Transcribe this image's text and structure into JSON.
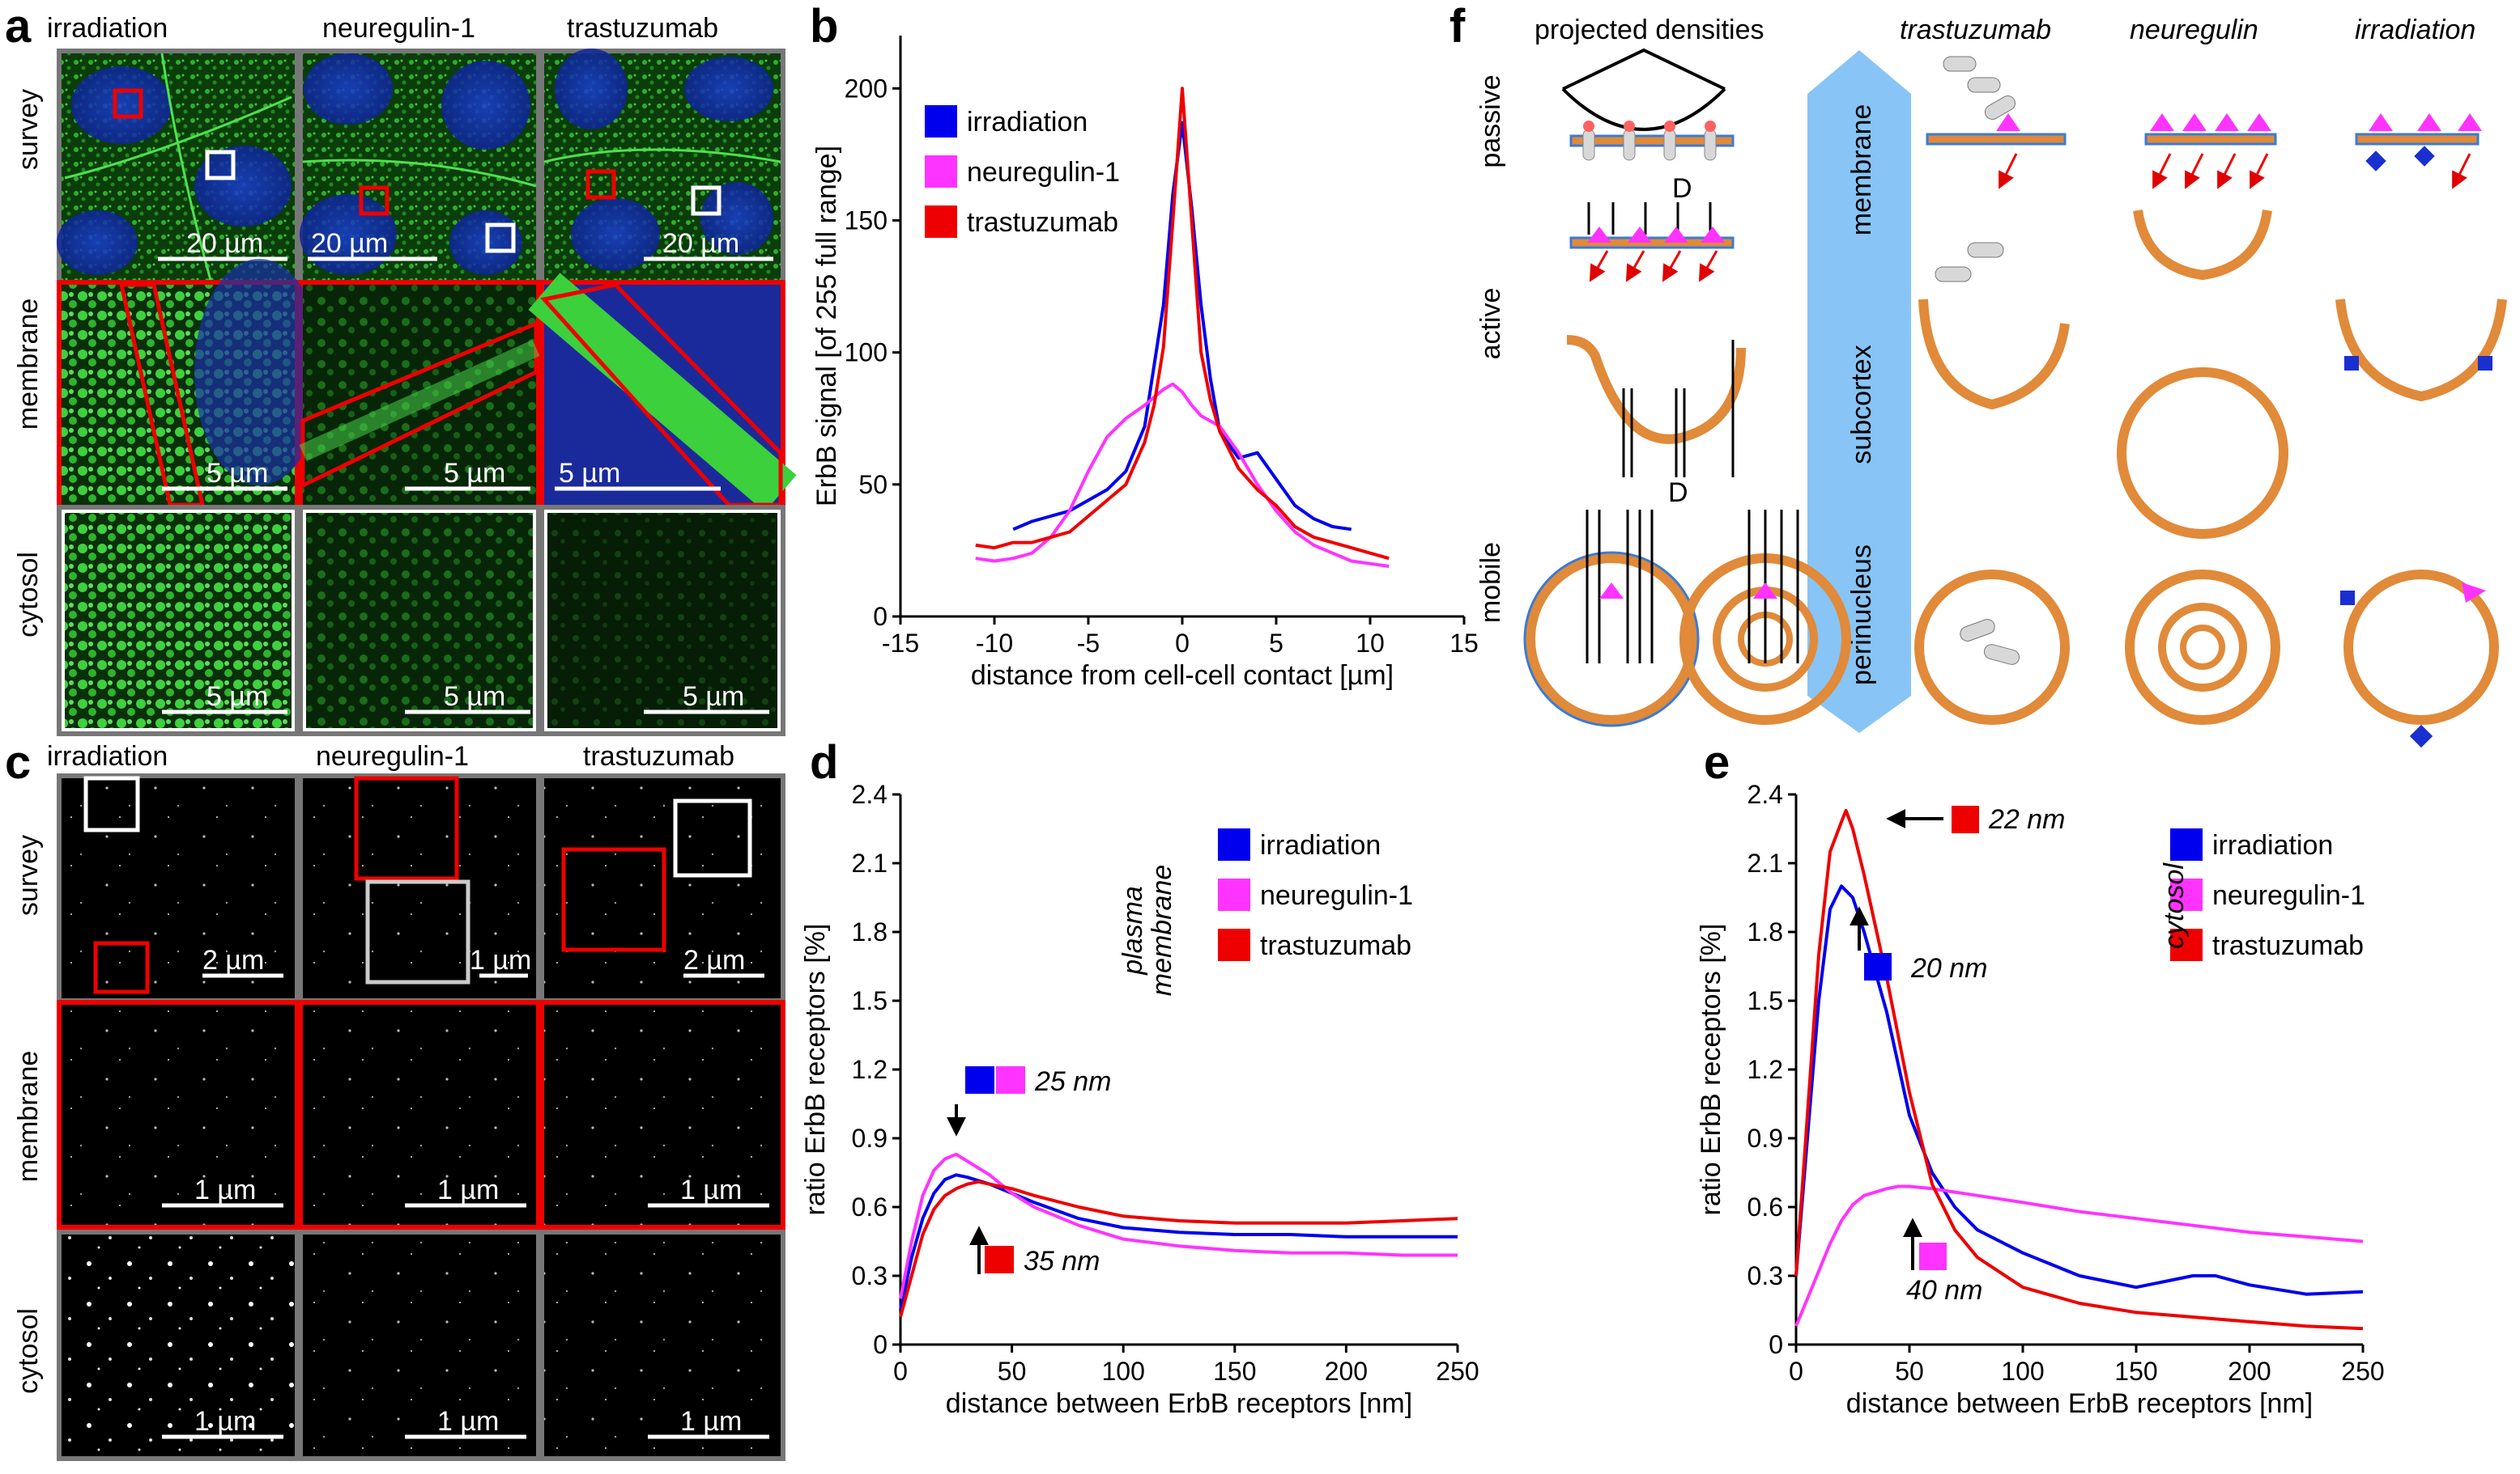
{
  "panels": {
    "a": "a",
    "b": "b",
    "c": "c",
    "d": "d",
    "e": "e",
    "f": "f"
  },
  "microscopy": {
    "columns": [
      "irradiation",
      "neuregulin-1",
      "trastuzumab"
    ],
    "rows": [
      "survey",
      "membrane",
      "cytosol"
    ],
    "scale_a": {
      "survey": [
        "20 µm",
        "20 µm",
        "20 µm"
      ],
      "membrane": [
        "5 µm",
        "5 µm",
        "5 µm"
      ],
      "cytosol": [
        "5 µm",
        "5 µm",
        "5 µm"
      ]
    },
    "scale_c": {
      "survey": [
        "2 µm",
        "1 µm",
        "2 µm"
      ],
      "membrane": [
        "1 µm",
        "1 µm",
        "1 µm"
      ],
      "cytosol": [
        "1 µm",
        "1 µm",
        "1 µm"
      ]
    }
  },
  "colors": {
    "irradiation": "#0000ee",
    "neuregulin": "#ff33ff",
    "trastuzumab": "#ee0000",
    "arrow": "#7fbfff",
    "membrane": "#e08a3a",
    "receptor": "#d8d8d8",
    "ligand": "#ff6060"
  },
  "chart_data": [
    {
      "panel": "b",
      "type": "line",
      "xlabel": "distance from cell-cell contact [µm]",
      "ylabel": "ErbB signal [of 255 full range]",
      "xlim": [
        -15,
        15
      ],
      "ylim": [
        0,
        220
      ],
      "xticks": [
        -15,
        -10,
        -5,
        0,
        5,
        10,
        15
      ],
      "yticks": [
        0,
        50,
        100,
        150,
        200
      ],
      "legend": [
        "irradiation",
        "neuregulin-1",
        "trastuzumab"
      ],
      "series": [
        {
          "name": "irradiation",
          "x": [
            -9,
            -8,
            -7,
            -6,
            -5,
            -4,
            -3,
            -2,
            -1.5,
            -1,
            -0.5,
            0,
            0.5,
            1,
            1.5,
            2,
            3,
            4,
            5,
            6,
            7,
            8,
            9
          ],
          "y": [
            33,
            36,
            38,
            40,
            44,
            48,
            55,
            72,
            95,
            118,
            160,
            187,
            155,
            118,
            90,
            70,
            60,
            62,
            52,
            42,
            37,
            34,
            33
          ]
        },
        {
          "name": "neuregulin-1",
          "x": [
            -11,
            -10,
            -9,
            -8,
            -7,
            -6,
            -5,
            -4,
            -3,
            -2,
            -1,
            -0.5,
            0,
            0.5,
            1,
            2,
            3,
            4,
            5,
            6,
            7,
            8,
            9,
            10,
            11
          ],
          "y": [
            22,
            21,
            22,
            24,
            30,
            40,
            55,
            68,
            75,
            80,
            86,
            88,
            85,
            80,
            76,
            72,
            62,
            50,
            40,
            32,
            27,
            24,
            21,
            20,
            19
          ]
        },
        {
          "name": "trastuzumab",
          "x": [
            -11,
            -10,
            -9,
            -8,
            -7,
            -6,
            -5,
            -4,
            -3,
            -2,
            -1.5,
            -1,
            -0.5,
            0,
            0.5,
            1,
            1.5,
            2,
            3,
            4,
            5,
            6,
            7,
            8,
            9,
            10,
            11
          ],
          "y": [
            27,
            26,
            28,
            28,
            30,
            32,
            38,
            44,
            50,
            66,
            80,
            102,
            150,
            200,
            150,
            100,
            82,
            70,
            56,
            48,
            42,
            34,
            30,
            28,
            26,
            24,
            22
          ]
        }
      ]
    },
    {
      "panel": "d",
      "type": "line",
      "xlabel": "distance between ErbB receptors [nm]",
      "ylabel": "ratio ErbB receptors [%]",
      "xlim": [
        0,
        250
      ],
      "ylim": [
        0,
        2.4
      ],
      "xticks": [
        0,
        50,
        100,
        150,
        200,
        250
      ],
      "yticks": [
        0,
        0.3,
        0.6,
        0.9,
        1.2,
        1.5,
        1.8,
        2.1,
        2.4
      ],
      "legend_title": "plasma membrane",
      "legend": [
        "irradiation",
        "neuregulin-1",
        "trastuzumab"
      ],
      "annotations": [
        "25 nm",
        "35 nm"
      ],
      "series": [
        {
          "name": "irradiation",
          "x": [
            0,
            5,
            10,
            15,
            20,
            25,
            30,
            40,
            50,
            60,
            80,
            100,
            125,
            150,
            175,
            200,
            225,
            250
          ],
          "y": [
            0.15,
            0.38,
            0.55,
            0.66,
            0.72,
            0.74,
            0.73,
            0.7,
            0.66,
            0.62,
            0.55,
            0.51,
            0.49,
            0.48,
            0.48,
            0.47,
            0.47,
            0.47
          ]
        },
        {
          "name": "neuregulin-1",
          "x": [
            0,
            5,
            10,
            15,
            20,
            25,
            30,
            40,
            50,
            60,
            80,
            100,
            125,
            150,
            175,
            200,
            225,
            250
          ],
          "y": [
            0.2,
            0.45,
            0.65,
            0.76,
            0.81,
            0.83,
            0.8,
            0.74,
            0.66,
            0.6,
            0.52,
            0.46,
            0.43,
            0.41,
            0.4,
            0.4,
            0.39,
            0.39
          ]
        },
        {
          "name": "trastuzumab",
          "x": [
            0,
            5,
            10,
            15,
            20,
            25,
            30,
            35,
            40,
            50,
            60,
            80,
            100,
            125,
            150,
            175,
            200,
            225,
            250
          ],
          "y": [
            0.12,
            0.3,
            0.48,
            0.59,
            0.65,
            0.68,
            0.7,
            0.71,
            0.7,
            0.68,
            0.65,
            0.6,
            0.56,
            0.54,
            0.53,
            0.53,
            0.53,
            0.54,
            0.55
          ]
        }
      ]
    },
    {
      "panel": "e",
      "type": "line",
      "xlabel": "distance between ErbB receptors [nm]",
      "ylabel": "ratio ErbB receptors [%]",
      "xlim": [
        0,
        250
      ],
      "ylim": [
        0,
        2.4
      ],
      "xticks": [
        0,
        50,
        100,
        150,
        200,
        250
      ],
      "yticks": [
        0,
        0.3,
        0.6,
        0.9,
        1.2,
        1.5,
        1.8,
        2.1,
        2.4
      ],
      "legend_title": "cytosol",
      "legend": [
        "irradiation",
        "neuregulin-1",
        "trastuzumab"
      ],
      "annotations": [
        "22 nm",
        "20 nm",
        "40 nm"
      ],
      "series": [
        {
          "name": "irradiation",
          "x": [
            0,
            5,
            10,
            15,
            20,
            25,
            30,
            40,
            50,
            60,
            70,
            80,
            100,
            125,
            150,
            175,
            185,
            200,
            225,
            250
          ],
          "y": [
            0.3,
            0.9,
            1.5,
            1.9,
            2.0,
            1.95,
            1.8,
            1.45,
            1.0,
            0.75,
            0.6,
            0.5,
            0.4,
            0.3,
            0.25,
            0.3,
            0.3,
            0.26,
            0.22,
            0.23
          ]
        },
        {
          "name": "neuregulin-1",
          "x": [
            0,
            5,
            10,
            15,
            20,
            25,
            30,
            40,
            45,
            50,
            60,
            80,
            100,
            125,
            150,
            175,
            200,
            225,
            250
          ],
          "y": [
            0.08,
            0.2,
            0.32,
            0.44,
            0.54,
            0.61,
            0.65,
            0.68,
            0.69,
            0.69,
            0.68,
            0.65,
            0.62,
            0.58,
            0.55,
            0.52,
            0.49,
            0.47,
            0.45
          ]
        },
        {
          "name": "trastuzumab",
          "x": [
            0,
            5,
            10,
            15,
            20,
            22,
            25,
            30,
            40,
            50,
            60,
            70,
            80,
            100,
            125,
            150,
            175,
            200,
            225,
            250
          ],
          "y": [
            0.3,
            1.0,
            1.7,
            2.15,
            2.28,
            2.33,
            2.25,
            2.05,
            1.6,
            1.1,
            0.7,
            0.5,
            0.38,
            0.25,
            0.18,
            0.14,
            0.12,
            0.1,
            0.08,
            0.07
          ]
        }
      ]
    }
  ],
  "schematic": {
    "header_left": "projected densities",
    "row_labels": [
      "passive",
      "active",
      "mobile"
    ],
    "D": "D",
    "arrow_labels": [
      "membrane",
      "subcortex",
      "perinucleus"
    ],
    "conditions": [
      "trastuzumab",
      "neuregulin",
      "irradiation"
    ]
  }
}
